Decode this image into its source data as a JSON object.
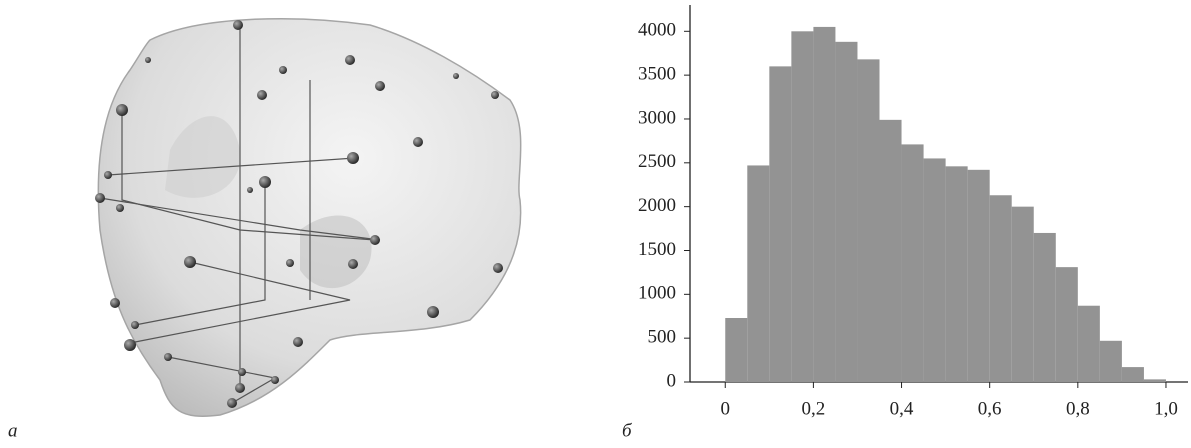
{
  "image_panel": {
    "label": "а"
  },
  "chart_data": {
    "type": "histogram",
    "panel_label": "б",
    "bins": [
      0,
      0.05,
      0.1,
      0.15,
      0.2,
      0.25,
      0.3,
      0.35,
      0.4,
      0.45,
      0.5,
      0.55,
      0.6,
      0.65,
      0.7,
      0.75,
      0.8,
      0.85,
      0.9,
      0.95,
      1.0
    ],
    "values": [
      730,
      2470,
      3600,
      4000,
      4050,
      3880,
      3680,
      2990,
      2710,
      2550,
      2460,
      2420,
      2130,
      2000,
      1700,
      1310,
      870,
      470,
      170,
      30
    ],
    "color": "#939393",
    "xlim": [
      -0.08,
      1.05
    ],
    "ylim": [
      0,
      4300
    ],
    "xticks": [
      0,
      {
        "value": 0.2,
        "label": "0,2"
      },
      {
        "value": 0.4,
        "label": "0,4"
      },
      {
        "value": 0.6,
        "label": "0,6"
      },
      {
        "value": 0.8,
        "label": "0,8"
      },
      {
        "value": 1.0,
        "label": "1,0"
      }
    ],
    "yticks": [
      0,
      500,
      1000,
      1500,
      2000,
      2500,
      3000,
      3500,
      4000
    ]
  }
}
